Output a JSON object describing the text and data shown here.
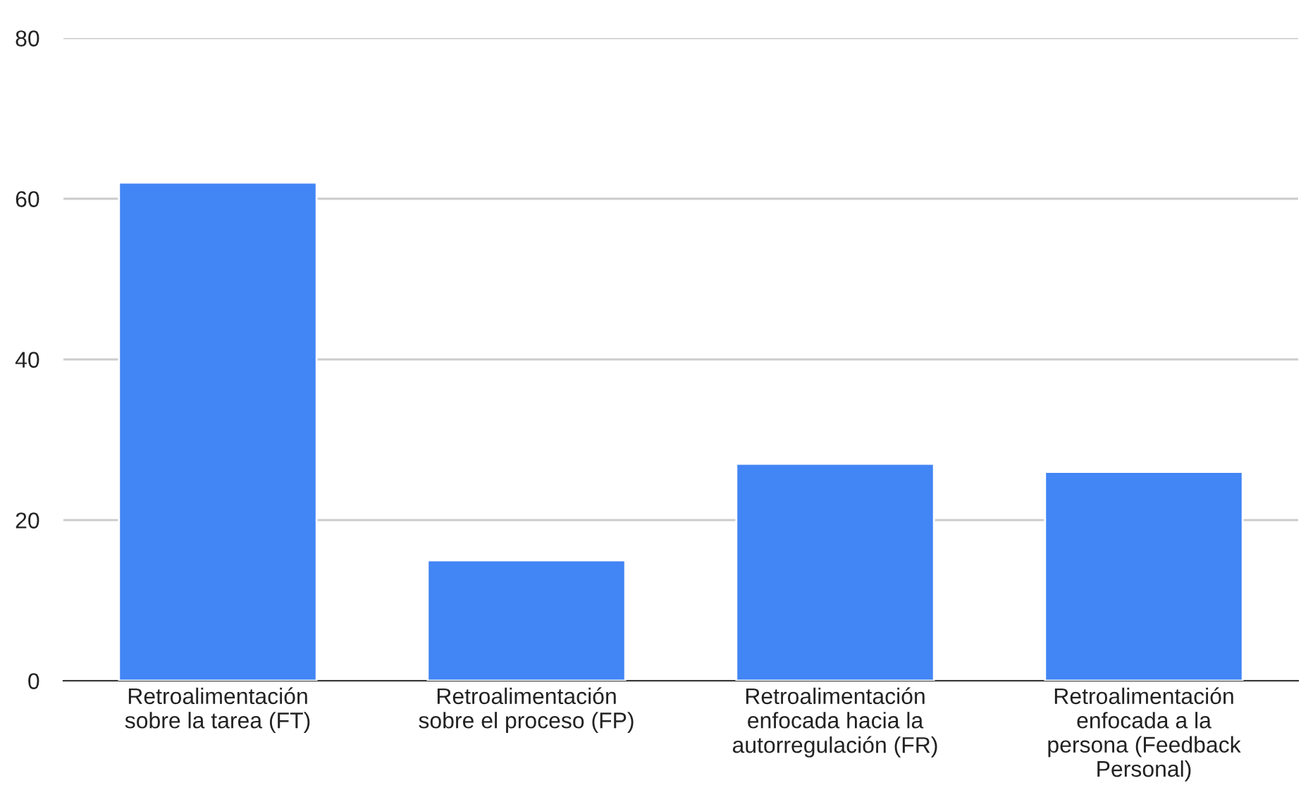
{
  "chart_data": {
    "type": "bar",
    "categories": [
      "Retroalimentación\nsobre la tarea (FT)",
      "Retroalimentación\nsobre el proceso (FP)",
      "Retroalimentación\nenfocada hacia la\nautorregulación (FR)",
      "Retroalimentación\nenfocada a la\npersona (Feedback\nPersonal)"
    ],
    "values": [
      62,
      15,
      27,
      26
    ],
    "color": "#4285f4",
    "ylim": [
      0,
      80
    ],
    "yticks": [
      0,
      20,
      40,
      60,
      80
    ],
    "grid": "y"
  }
}
